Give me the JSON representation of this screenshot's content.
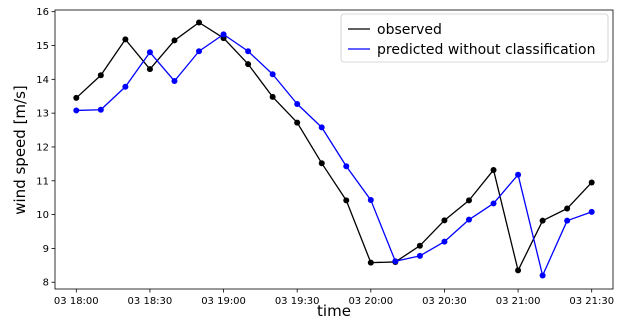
{
  "chart_data": {
    "type": "line",
    "title": "",
    "xlabel": "time",
    "ylabel": "wind speed [m/s]",
    "x": [
      "03 18:00",
      "03 18:10",
      "03 18:20",
      "03 18:30",
      "03 18:40",
      "03 18:50",
      "03 19:00",
      "03 19:10",
      "03 19:20",
      "03 19:30",
      "03 19:40",
      "03 19:50",
      "03 20:00",
      "03 20:10",
      "03 20:20",
      "03 20:30",
      "03 20:40",
      "03 20:50",
      "03 21:00",
      "03 21:10",
      "03 21:20",
      "03 21:30"
    ],
    "xticks": [
      "03 18:00",
      "03 18:30",
      "03 19:00",
      "03 19:30",
      "03 20:00",
      "03 20:30",
      "03 21:00",
      "03 21:30"
    ],
    "ylim": [
      7.8,
      16.05
    ],
    "yticks": [
      8,
      9,
      10,
      11,
      12,
      13,
      14,
      15,
      16
    ],
    "grid": false,
    "legend": "top-right",
    "series": [
      {
        "name": "observed",
        "color": "#000000",
        "values": [
          13.45,
          14.12,
          15.18,
          14.3,
          15.15,
          15.68,
          15.22,
          14.45,
          13.48,
          12.72,
          11.52,
          10.42,
          8.58,
          8.6,
          9.08,
          9.83,
          10.42,
          11.32,
          8.35,
          9.82,
          10.18,
          10.95
        ]
      },
      {
        "name": "predicted without classification",
        "color": "#0000ff",
        "values": [
          13.08,
          13.1,
          13.78,
          14.8,
          13.95,
          14.83,
          15.33,
          14.83,
          14.15,
          13.27,
          12.58,
          11.43,
          10.43,
          8.62,
          8.78,
          9.2,
          9.85,
          10.33,
          11.18,
          8.2,
          9.82,
          10.08
        ]
      }
    ]
  }
}
